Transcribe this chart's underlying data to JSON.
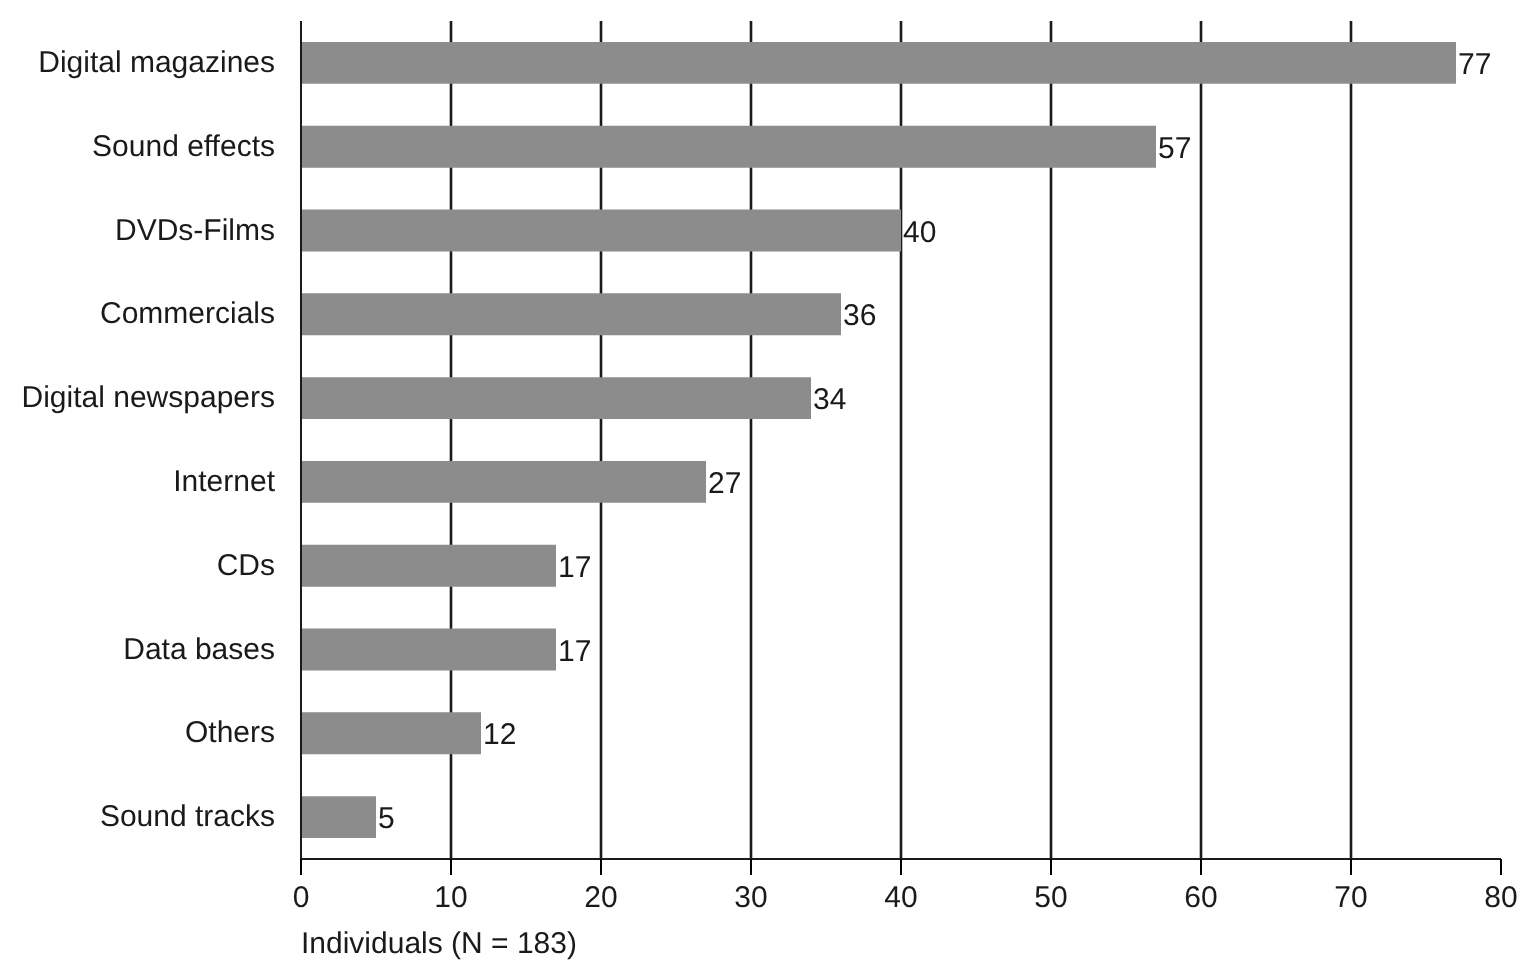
{
  "chart_data": {
    "type": "bar",
    "orientation": "horizontal",
    "xlabel": "Individuals (N = 183)",
    "categories": [
      "Digital magazines",
      "Sound effects",
      "DVDs-Films",
      "Commercials",
      "Digital newspapers",
      "Internet",
      "CDs",
      "Data bases",
      "Others",
      "Sound tracks"
    ],
    "values": [
      77,
      57,
      40,
      36,
      34,
      27,
      17,
      17,
      12,
      5
    ],
    "color": "#8c8c8c",
    "xlim": [
      0,
      80
    ],
    "xticks": [
      0,
      10,
      20,
      30,
      40,
      50,
      60,
      70,
      80
    ],
    "grid": "x",
    "data_labels": true
  }
}
